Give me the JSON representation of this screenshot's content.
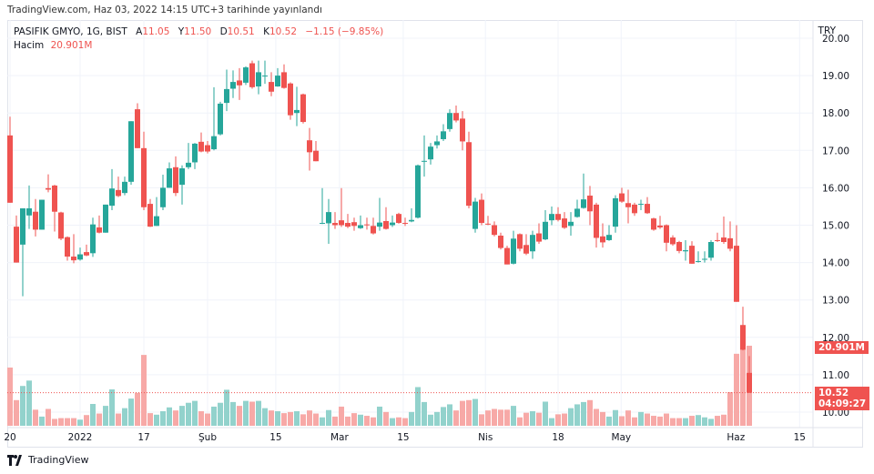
{
  "header": {
    "published": "TradingView.com, Haz 03, 2022 14:15 UTC+3 tarihinde yayınlandı"
  },
  "legend": {
    "symbol": "PASIFIK GMYO, 1G, BIST",
    "open_label": "A",
    "open": "11.05",
    "high_label": "Y",
    "high": "11.50",
    "low_label": "D",
    "low": "10.51",
    "close_label": "K",
    "close": "10.52",
    "change": "−1.15 (−9.85%)",
    "volume_label": "Hacim",
    "volume": "20.901M"
  },
  "currency": "TRY",
  "badges": {
    "volume": "20.901M",
    "price": "10.52",
    "countdown": "04:09:27"
  },
  "footer": {
    "brand": "TradingView"
  },
  "colors": {
    "up": "#26a69a",
    "down": "#ef5350",
    "up_vol": "#92d2cc",
    "down_vol": "#f7a9a7",
    "grid": "#f0f3fa"
  },
  "chart_data": {
    "type": "candlestick",
    "title": "PASIFIK GMYO, 1G, BIST",
    "ylim": [
      9.7,
      20.4
    ],
    "y_ticks": [
      "10.00",
      "11.00",
      "12.00",
      "13.00",
      "14.00",
      "15.00",
      "16.00",
      "17.00",
      "18.00",
      "19.00",
      "20.00"
    ],
    "x_ticks": [
      {
        "bar": 0,
        "label": "20"
      },
      {
        "bar": 11,
        "label": "2022"
      },
      {
        "bar": 21,
        "label": "17"
      },
      {
        "bar": 31,
        "label": "Şub"
      },
      {
        "bar": 41.7,
        "label": "15"
      },
      {
        "bar": 51.7,
        "label": "Mar"
      },
      {
        "bar": 61.7,
        "label": "15"
      },
      {
        "bar": 74.6,
        "label": "Nis"
      },
      {
        "bar": 86,
        "label": "18"
      },
      {
        "bar": 95.9,
        "label": "May"
      },
      {
        "bar": 113.9,
        "label": "Haz"
      },
      {
        "bar": 123.9,
        "label": "15"
      }
    ],
    "last_price": 10.52,
    "ohlc": [
      [
        17.4,
        17.9,
        15.6,
        15.6
      ],
      [
        14.96,
        15.26,
        14.0,
        14.0
      ],
      [
        14.48,
        15.45,
        13.1,
        15.45
      ],
      [
        15.26,
        16.06,
        14.9,
        15.45
      ],
      [
        15.36,
        15.7,
        14.7,
        14.88
      ],
      [
        14.88,
        15.68,
        14.88,
        15.68
      ],
      [
        15.99,
        16.36,
        15.88,
        15.95
      ],
      [
        16.06,
        16.08,
        14.83,
        15.36
      ],
      [
        15.34,
        15.36,
        14.6,
        14.64
      ],
      [
        14.68,
        14.7,
        14.05,
        14.16
      ],
      [
        14.16,
        14.76,
        13.98,
        14.06
      ],
      [
        14.08,
        14.4,
        14.05,
        14.22
      ],
      [
        14.28,
        14.48,
        14.17,
        14.19
      ],
      [
        14.25,
        15.2,
        14.15,
        15.02
      ],
      [
        14.94,
        15.26,
        14.78,
        14.8
      ],
      [
        14.8,
        15.55,
        14.8,
        15.55
      ],
      [
        15.52,
        16.5,
        15.4,
        15.98
      ],
      [
        15.94,
        16.3,
        15.75,
        15.78
      ],
      [
        15.86,
        16.3,
        15.8,
        16.16
      ],
      [
        16.16,
        17.78,
        16.08,
        17.78
      ],
      [
        18.1,
        18.26,
        17.06,
        17.06
      ],
      [
        17.06,
        17.5,
        15.4,
        15.48
      ],
      [
        15.57,
        15.7,
        14.95,
        14.96
      ],
      [
        14.98,
        15.75,
        14.98,
        15.24
      ],
      [
        15.48,
        16.35,
        15.4,
        16.0
      ],
      [
        16.0,
        16.68,
        16.0,
        16.52
      ],
      [
        16.55,
        16.84,
        15.78,
        15.86
      ],
      [
        16.08,
        16.6,
        15.55,
        16.52
      ],
      [
        16.55,
        17.2,
        16.5,
        16.67
      ],
      [
        16.68,
        17.2,
        16.5,
        17.18
      ],
      [
        17.23,
        17.48,
        16.95,
        16.97
      ],
      [
        17.14,
        17.25,
        16.92,
        16.97
      ],
      [
        17.03,
        18.69,
        17.0,
        17.38
      ],
      [
        17.43,
        18.3,
        17.4,
        18.25
      ],
      [
        18.27,
        19.16,
        18.05,
        18.64
      ],
      [
        18.65,
        19.14,
        18.4,
        18.83
      ],
      [
        18.87,
        19.2,
        18.35,
        18.74
      ],
      [
        18.81,
        19.25,
        18.75,
        19.22
      ],
      [
        19.33,
        19.4,
        18.65,
        18.69
      ],
      [
        18.71,
        19.4,
        18.5,
        19.09
      ],
      [
        19.0,
        19.4,
        18.78,
        19.0
      ],
      [
        18.83,
        19.09,
        18.45,
        18.57
      ],
      [
        18.71,
        19.2,
        18.7,
        19.0
      ],
      [
        19.09,
        19.3,
        18.65,
        18.67
      ],
      [
        18.79,
        18.82,
        17.82,
        17.94
      ],
      [
        18.0,
        18.7,
        17.65,
        18.08
      ],
      [
        18.5,
        18.52,
        17.72,
        17.76
      ],
      [
        17.27,
        17.6,
        16.46,
        16.95
      ],
      [
        16.99,
        17.25,
        16.71,
        16.71
      ],
      [
        15.06,
        15.99,
        15.03,
        15.06
      ],
      [
        15.05,
        15.7,
        14.5,
        15.35
      ],
      [
        15.06,
        15.35,
        14.9,
        15.0
      ],
      [
        15.13,
        15.99,
        14.95,
        15.0
      ],
      [
        15.06,
        15.3,
        14.92,
        14.96
      ],
      [
        15.08,
        15.2,
        14.85,
        14.98
      ],
      [
        14.92,
        15.26,
        14.9,
        15.0
      ],
      [
        15.02,
        15.2,
        14.88,
        15.0
      ],
      [
        14.98,
        15.2,
        14.75,
        14.78
      ],
      [
        14.96,
        15.73,
        14.85,
        15.07
      ],
      [
        15.11,
        15.48,
        14.88,
        14.9
      ],
      [
        15.0,
        15.26,
        14.95,
        15.07
      ],
      [
        15.3,
        15.33,
        15.04,
        15.06
      ],
      [
        15.06,
        15.2,
        14.98,
        15.04
      ],
      [
        15.1,
        15.45,
        15.08,
        15.14
      ],
      [
        15.2,
        16.62,
        15.18,
        16.6
      ],
      [
        16.7,
        17.4,
        16.3,
        16.72
      ],
      [
        16.76,
        17.2,
        16.62,
        17.1
      ],
      [
        17.14,
        17.4,
        17.05,
        17.24
      ],
      [
        17.3,
        17.7,
        17.25,
        17.51
      ],
      [
        17.57,
        18.1,
        17.5,
        18.0
      ],
      [
        18.0,
        18.2,
        17.75,
        17.8
      ],
      [
        17.85,
        18.05,
        17.0,
        17.24
      ],
      [
        17.22,
        17.5,
        15.45,
        15.52
      ],
      [
        14.9,
        15.73,
        14.8,
        15.63
      ],
      [
        15.68,
        15.85,
        15.0,
        15.06
      ],
      [
        15.04,
        15.25,
        15.0,
        15.02
      ],
      [
        15.0,
        15.1,
        14.7,
        14.74
      ],
      [
        14.72,
        14.8,
        14.35,
        14.39
      ],
      [
        14.39,
        14.45,
        13.95,
        13.95
      ],
      [
        13.97,
        14.85,
        13.95,
        14.64
      ],
      [
        14.76,
        14.78,
        14.3,
        14.37
      ],
      [
        14.47,
        14.76,
        14.2,
        14.24
      ],
      [
        14.3,
        14.85,
        14.1,
        14.74
      ],
      [
        14.78,
        15.05,
        14.5,
        14.56
      ],
      [
        14.62,
        15.4,
        14.6,
        15.09
      ],
      [
        15.13,
        15.5,
        15.0,
        15.3
      ],
      [
        15.3,
        15.48,
        15.1,
        15.14
      ],
      [
        15.18,
        15.35,
        14.9,
        14.93
      ],
      [
        14.98,
        15.35,
        14.72,
        15.09
      ],
      [
        15.22,
        15.68,
        15.2,
        15.44
      ],
      [
        15.46,
        16.38,
        15.44,
        15.69
      ],
      [
        15.79,
        16.05,
        15.0,
        15.37
      ],
      [
        15.55,
        15.6,
        14.4,
        14.66
      ],
      [
        14.7,
        15.05,
        14.4,
        14.54
      ],
      [
        14.6,
        15.0,
        14.58,
        14.74
      ],
      [
        14.96,
        15.8,
        14.8,
        15.72
      ],
      [
        15.85,
        16.0,
        15.6,
        15.63
      ],
      [
        15.59,
        15.95,
        15.05,
        15.48
      ],
      [
        15.55,
        15.6,
        15.25,
        15.32
      ],
      [
        15.57,
        15.68,
        15.4,
        15.57
      ],
      [
        15.57,
        15.75,
        15.3,
        15.32
      ],
      [
        15.18,
        15.2,
        14.85,
        14.88
      ],
      [
        14.99,
        15.25,
        14.9,
        14.94
      ],
      [
        15.0,
        15.02,
        14.3,
        14.53
      ],
      [
        14.67,
        14.73,
        14.45,
        14.49
      ],
      [
        14.55,
        14.58,
        14.25,
        14.31
      ],
      [
        14.3,
        14.6,
        14.05,
        14.33
      ],
      [
        14.45,
        14.57,
        13.97,
        13.97
      ],
      [
        14.04,
        14.3,
        14.0,
        14.04
      ],
      [
        14.1,
        14.3,
        14.0,
        14.1
      ],
      [
        14.13,
        14.6,
        14.05,
        14.55
      ],
      [
        14.6,
        14.8,
        14.55,
        14.58
      ],
      [
        14.67,
        15.23,
        14.5,
        14.55
      ],
      [
        14.65,
        15.1,
        14.3,
        14.37
      ],
      [
        14.45,
        15.0,
        12.95,
        12.95
      ],
      [
        12.33,
        12.82,
        11.65,
        11.67
      ],
      [
        11.05,
        11.5,
        10.51,
        10.52
      ]
    ],
    "volume_millions": [
      15.2,
      6.7,
      10.4,
      11.8,
      4.2,
      2.4,
      4.4,
      1.8,
      2.0,
      2.0,
      2.0,
      1.6,
      2.8,
      5.7,
      3.2,
      5.2,
      9.5,
      3.2,
      4.6,
      7.1,
      8.6,
      18.5,
      3.3,
      2.9,
      3.8,
      4.8,
      4.0,
      5.2,
      6.0,
      6.5,
      3.8,
      3.2,
      5.0,
      6.0,
      9.4,
      6.2,
      5.2,
      6.5,
      6.3,
      6.5,
      4.6,
      4.0,
      3.8,
      3.3,
      3.6,
      3.8,
      3.0,
      4.0,
      3.2,
      2.2,
      4.1,
      2.4,
      5.0,
      2.4,
      3.3,
      2.9,
      2.6,
      2.2,
      5.0,
      3.6,
      2.0,
      2.2,
      2.0,
      3.6,
      10.1,
      6.2,
      2.9,
      3.6,
      4.9,
      5.6,
      4.0,
      6.5,
      6.7,
      7.0,
      3.0,
      4.0,
      4.4,
      4.2,
      4.2,
      5.2,
      2.2,
      3.4,
      3.8,
      3.4,
      6.3,
      2.0,
      3.0,
      3.2,
      4.6,
      5.6,
      6.2,
      6.7,
      4.4,
      3.6,
      2.4,
      4.1,
      2.5,
      4.0,
      2.2,
      3.6,
      3.2,
      2.6,
      2.4,
      3.2,
      2.0,
      2.0,
      2.0,
      2.6,
      2.8,
      2.2,
      1.8,
      2.6,
      2.9,
      8.8,
      18.8,
      20.0,
      20.901
    ]
  }
}
